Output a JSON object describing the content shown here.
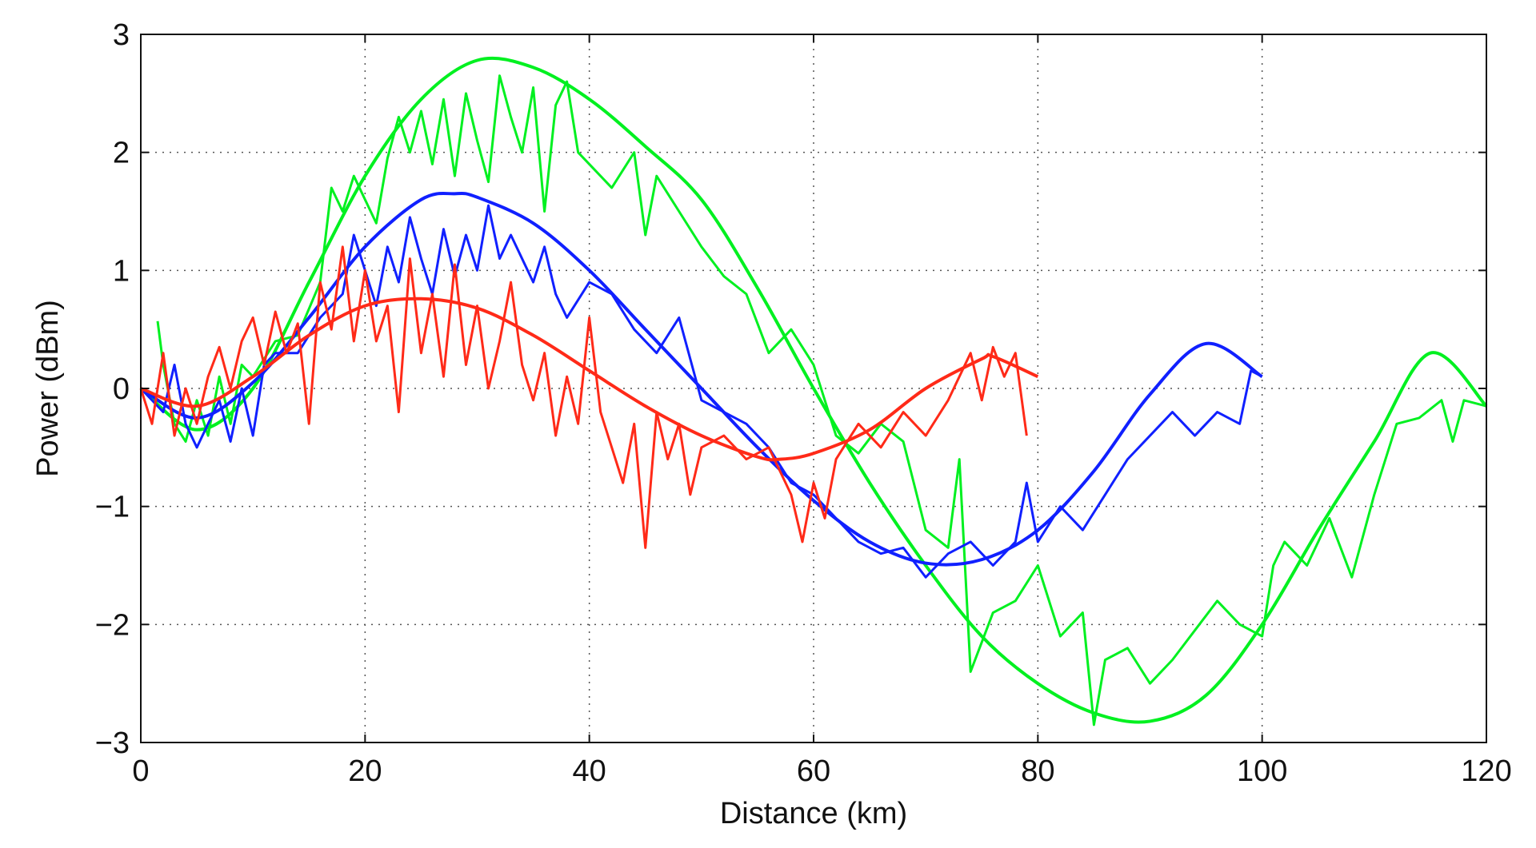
{
  "chart_data": {
    "type": "line",
    "title": "",
    "xlabel": "Distance (km)",
    "ylabel": "Power (dBm)",
    "xlim": [
      0,
      120
    ],
    "ylim": [
      -3,
      3
    ],
    "xticks": [
      0,
      20,
      40,
      60,
      80,
      100,
      120
    ],
    "yticks": [
      -3,
      -2,
      -1,
      0,
      1,
      2,
      3
    ],
    "ytick_labels": [
      "−3",
      "−2",
      "−1",
      "0",
      "1",
      "2",
      "3"
    ],
    "grid": true,
    "grid_style": "dotted",
    "legend": "none",
    "series": [
      {
        "color": "#00f020",
        "style": "smooth",
        "x": [
          0,
          5,
          10,
          15,
          20,
          25,
          30,
          35,
          40,
          45,
          50,
          55,
          60,
          65,
          70,
          75,
          80,
          85,
          90,
          95,
          100,
          105,
          110,
          115,
          120
        ],
        "y": [
          0,
          -0.35,
          0.0,
          0.9,
          1.8,
          2.45,
          2.78,
          2.72,
          2.45,
          2.05,
          1.6,
          0.85,
          0.0,
          -0.8,
          -1.5,
          -2.1,
          -2.5,
          -2.75,
          -2.82,
          -2.6,
          -2.0,
          -1.2,
          -0.45,
          0.3,
          -0.15
        ]
      },
      {
        "color": "#00f020",
        "style": "measured",
        "x": [
          1.5,
          2,
          3,
          4,
          5,
          6,
          7,
          8,
          9,
          10,
          12,
          14,
          16,
          17,
          18,
          19,
          20,
          21,
          22,
          23,
          24,
          25,
          26,
          27,
          28,
          29,
          30,
          31,
          32,
          33,
          34,
          35,
          36,
          37,
          38,
          39,
          40,
          42,
          44,
          45,
          46,
          48,
          50,
          52,
          54,
          56,
          58,
          60,
          62,
          64,
          66,
          68,
          70,
          72,
          73,
          74,
          76,
          78,
          80,
          82,
          84,
          85,
          86,
          88,
          90,
          92,
          94,
          96,
          98,
          100,
          101,
          102,
          104,
          106,
          108,
          110,
          112,
          114,
          116,
          117,
          118,
          120
        ],
        "y": [
          0.57,
          0.2,
          -0.3,
          -0.45,
          -0.1,
          -0.4,
          0.1,
          -0.3,
          0.2,
          0.1,
          0.4,
          0.45,
          0.9,
          1.7,
          1.5,
          1.8,
          1.6,
          1.4,
          1.95,
          2.3,
          2.0,
          2.35,
          1.9,
          2.45,
          1.8,
          2.5,
          2.1,
          1.75,
          2.65,
          2.3,
          2.0,
          2.55,
          1.5,
          2.4,
          2.6,
          2.0,
          1.9,
          1.7,
          2.0,
          1.3,
          1.8,
          1.5,
          1.2,
          0.95,
          0.8,
          0.3,
          0.5,
          0.2,
          -0.4,
          -0.55,
          -0.3,
          -0.45,
          -1.2,
          -1.35,
          -0.6,
          -2.4,
          -1.9,
          -1.8,
          -1.5,
          -2.1,
          -1.9,
          -2.85,
          -2.3,
          -2.2,
          -2.5,
          -2.3,
          -2.05,
          -1.8,
          -2.0,
          -2.1,
          -1.5,
          -1.3,
          -1.5,
          -1.1,
          -1.6,
          -0.9,
          -0.3,
          -0.25,
          -0.1,
          -0.45,
          -0.1,
          -0.15
        ]
      },
      {
        "color": "#1020ff",
        "style": "smooth",
        "x": [
          0,
          5,
          10,
          15,
          20,
          25,
          28,
          30,
          35,
          40,
          45,
          50,
          55,
          60,
          65,
          70,
          75,
          80,
          85,
          90,
          95,
          100
        ],
        "y": [
          0,
          -0.25,
          0.05,
          0.6,
          1.2,
          1.6,
          1.65,
          1.62,
          1.4,
          1.0,
          0.5,
          0.0,
          -0.5,
          -0.95,
          -1.3,
          -1.48,
          -1.45,
          -1.2,
          -0.7,
          -0.05,
          0.38,
          0.1
        ]
      },
      {
        "color": "#1020ff",
        "style": "measured",
        "x": [
          0,
          2,
          3,
          4,
          5,
          6,
          7,
          8,
          9,
          10,
          11,
          12,
          14,
          16,
          18,
          19,
          20,
          21,
          22,
          23,
          24,
          25,
          26,
          27,
          28,
          29,
          30,
          31,
          32,
          33,
          34,
          35,
          36,
          37,
          38,
          40,
          42,
          44,
          46,
          48,
          50,
          52,
          54,
          56,
          58,
          60,
          62,
          64,
          66,
          68,
          70,
          72,
          74,
          76,
          78,
          79,
          80,
          82,
          84,
          86,
          88,
          90,
          92,
          94,
          96,
          98,
          99,
          100
        ],
        "y": [
          0,
          -0.2,
          0.2,
          -0.3,
          -0.5,
          -0.3,
          -0.1,
          -0.45,
          0.0,
          -0.4,
          0.2,
          0.3,
          0.3,
          0.6,
          0.8,
          1.3,
          1.0,
          0.7,
          1.2,
          0.9,
          1.45,
          1.1,
          0.8,
          1.35,
          0.95,
          1.3,
          1.0,
          1.55,
          1.1,
          1.3,
          1.1,
          0.9,
          1.2,
          0.8,
          0.6,
          0.9,
          0.8,
          0.5,
          0.3,
          0.6,
          -0.1,
          -0.2,
          -0.3,
          -0.5,
          -0.8,
          -0.9,
          -1.1,
          -1.3,
          -1.4,
          -1.35,
          -1.6,
          -1.4,
          -1.3,
          -1.5,
          -1.3,
          -0.8,
          -1.3,
          -1.0,
          -1.2,
          -0.9,
          -0.6,
          -0.4,
          -0.2,
          -0.4,
          -0.2,
          -0.3,
          0.15,
          0.1
        ]
      },
      {
        "color": "#ff2a18",
        "style": "smooth",
        "x": [
          0,
          5,
          10,
          15,
          20,
          25,
          30,
          35,
          40,
          45,
          50,
          55,
          57,
          60,
          65,
          70,
          75,
          76,
          80
        ],
        "y": [
          0,
          -0.15,
          0.1,
          0.45,
          0.7,
          0.76,
          0.68,
          0.45,
          0.15,
          -0.15,
          -0.4,
          -0.58,
          -0.6,
          -0.55,
          -0.35,
          0.0,
          0.25,
          0.27,
          0.1
        ]
      },
      {
        "color": "#ff2a18",
        "style": "measured",
        "x": [
          0,
          1,
          2,
          3,
          4,
          5,
          6,
          7,
          8,
          9,
          10,
          11,
          12,
          13,
          14,
          15,
          16,
          17,
          18,
          19,
          20,
          21,
          22,
          23,
          24,
          25,
          26,
          27,
          28,
          29,
          30,
          31,
          32,
          33,
          34,
          35,
          36,
          37,
          38,
          39,
          40,
          41,
          42,
          43,
          44,
          45,
          46,
          47,
          48,
          49,
          50,
          52,
          54,
          56,
          58,
          59,
          60,
          61,
          62,
          64,
          66,
          68,
          70,
          72,
          74,
          75,
          76,
          77,
          78,
          79
        ],
        "y": [
          0,
          -0.3,
          0.3,
          -0.4,
          0.0,
          -0.3,
          0.1,
          0.35,
          0.0,
          0.4,
          0.6,
          0.2,
          0.65,
          0.3,
          0.55,
          -0.3,
          0.9,
          0.5,
          1.2,
          0.4,
          1.0,
          0.4,
          0.7,
          -0.2,
          1.1,
          0.3,
          0.8,
          0.1,
          1.05,
          0.2,
          0.7,
          0.0,
          0.4,
          0.9,
          0.2,
          -0.1,
          0.3,
          -0.4,
          0.1,
          -0.3,
          0.6,
          -0.2,
          -0.5,
          -0.8,
          -0.3,
          -1.35,
          -0.2,
          -0.6,
          -0.3,
          -0.9,
          -0.5,
          -0.4,
          -0.6,
          -0.5,
          -0.9,
          -1.3,
          -0.8,
          -1.1,
          -0.6,
          -0.3,
          -0.5,
          -0.2,
          -0.4,
          -0.1,
          0.3,
          -0.1,
          0.35,
          0.1,
          0.3,
          -0.4
        ]
      }
    ]
  }
}
